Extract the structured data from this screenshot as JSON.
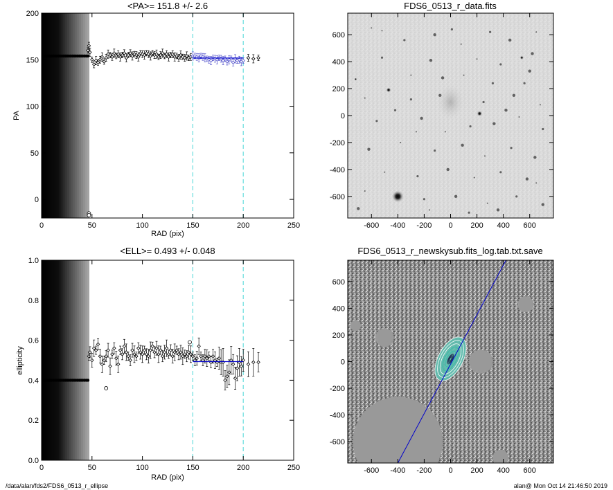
{
  "footer": {
    "path": "/data/alan/fds2/FDS6_0513_r_ellipse",
    "stamp": "alan@  Mon Oct 14 21:46:50 2019"
  },
  "colors": {
    "fit": "#0000cc",
    "fit_points": "#5555cc",
    "cyan": "#66dddd",
    "contour": "#33bbaa"
  },
  "chart_data": [
    {
      "type": "scatter",
      "title": "<PA>= 151.8 +/-   2.6",
      "xlabel": "RAD (pix)",
      "ylabel": "PA",
      "xlim": [
        0,
        250
      ],
      "ylim": [
        -20,
        200
      ],
      "xticks": [
        0,
        50,
        100,
        150,
        200,
        250
      ],
      "yticks": [
        0,
        50,
        100,
        150,
        200
      ],
      "grid": false,
      "inner_region_max_x": 47,
      "inner_marker_y": 154,
      "vlines": [
        150,
        200
      ],
      "mean_line": {
        "x": [
          150,
          200
        ],
        "y": 151.8
      },
      "points": [
        [
          46,
          160
        ],
        [
          47,
          165
        ],
        [
          48,
          158
        ],
        [
          50,
          150
        ],
        [
          52,
          145
        ],
        [
          54,
          149
        ],
        [
          56,
          147
        ],
        [
          58,
          150
        ],
        [
          60,
          153
        ],
        [
          62,
          148
        ],
        [
          64,
          152
        ],
        [
          66,
          156
        ],
        [
          68,
          155
        ],
        [
          70,
          153
        ],
        [
          72,
          157
        ],
        [
          74,
          154
        ],
        [
          76,
          156
        ],
        [
          78,
          153
        ],
        [
          80,
          155
        ],
        [
          82,
          157
        ],
        [
          84,
          152
        ],
        [
          86,
          155
        ],
        [
          88,
          157
        ],
        [
          90,
          154
        ],
        [
          92,
          156
        ],
        [
          94,
          155
        ],
        [
          96,
          153
        ],
        [
          98,
          157
        ],
        [
          100,
          156
        ],
        [
          102,
          155
        ],
        [
          104,
          157
        ],
        [
          106,
          156
        ],
        [
          108,
          154
        ],
        [
          110,
          157
        ],
        [
          112,
          155
        ],
        [
          114,
          156
        ],
        [
          116,
          153
        ],
        [
          118,
          155
        ],
        [
          120,
          157
        ],
        [
          122,
          154
        ],
        [
          124,
          156
        ],
        [
          126,
          153
        ],
        [
          128,
          155
        ],
        [
          130,
          156
        ],
        [
          132,
          153
        ],
        [
          134,
          154
        ],
        [
          136,
          152
        ],
        [
          138,
          155
        ],
        [
          140,
          153
        ],
        [
          142,
          152
        ],
        [
          144,
          154
        ],
        [
          146,
          152
        ],
        [
          148,
          153
        ],
        [
          150,
          154
        ],
        [
          152,
          154
        ],
        [
          154,
          153
        ],
        [
          156,
          152
        ],
        [
          158,
          154
        ],
        [
          160,
          153
        ],
        [
          162,
          152
        ],
        [
          164,
          151
        ],
        [
          166,
          150
        ],
        [
          168,
          149
        ],
        [
          170,
          152
        ],
        [
          172,
          151
        ],
        [
          174,
          150
        ],
        [
          176,
          152
        ],
        [
          178,
          151
        ],
        [
          180,
          149
        ],
        [
          182,
          151
        ],
        [
          184,
          148
        ],
        [
          186,
          150
        ],
        [
          188,
          151
        ],
        [
          190,
          147
        ],
        [
          192,
          151
        ],
        [
          194,
          149
        ],
        [
          196,
          150
        ],
        [
          198,
          148
        ],
        [
          200,
          149
        ],
        [
          205,
          152
        ],
        [
          210,
          151
        ],
        [
          215,
          152
        ]
      ],
      "fit_points_range": [
        150,
        200
      ],
      "outlier_points": [
        [
          47,
          -15
        ],
        [
          47,
          -17
        ]
      ]
    },
    {
      "type": "scatter",
      "title": "<ELL>= 0.493 +/-  0.048",
      "xlabel": "RAD (pix)",
      "ylabel": "ellipticity",
      "xlim": [
        0,
        250
      ],
      "ylim": [
        0.0,
        1.0
      ],
      "xticks": [
        0,
        50,
        100,
        150,
        200,
        250
      ],
      "yticks": [
        0.0,
        0.2,
        0.4,
        0.6,
        0.8,
        1.0
      ],
      "grid": false,
      "inner_region_max_x": 47,
      "inner_marker_y": 0.4,
      "vlines": [
        150,
        200
      ],
      "mean_line": {
        "x": [
          150,
          200
        ],
        "y": 0.493
      },
      "points": [
        [
          47,
          0.52
        ],
        [
          48,
          0.54
        ],
        [
          50,
          0.5
        ],
        [
          52,
          0.56
        ],
        [
          54,
          0.55
        ],
        [
          56,
          0.58
        ],
        [
          58,
          0.52
        ],
        [
          60,
          0.48
        ],
        [
          62,
          0.5
        ],
        [
          64,
          0.52
        ],
        [
          66,
          0.55
        ],
        [
          68,
          0.47
        ],
        [
          70,
          0.53
        ],
        [
          72,
          0.56
        ],
        [
          74,
          0.51
        ],
        [
          76,
          0.48
        ],
        [
          78,
          0.55
        ],
        [
          80,
          0.53
        ],
        [
          82,
          0.57
        ],
        [
          84,
          0.54
        ],
        [
          86,
          0.52
        ],
        [
          88,
          0.5
        ],
        [
          90,
          0.55
        ],
        [
          92,
          0.53
        ],
        [
          94,
          0.52
        ],
        [
          96,
          0.56
        ],
        [
          98,
          0.54
        ],
        [
          100,
          0.53
        ],
        [
          102,
          0.55
        ],
        [
          104,
          0.53
        ],
        [
          106,
          0.52
        ],
        [
          108,
          0.55
        ],
        [
          110,
          0.57
        ],
        [
          112,
          0.54
        ],
        [
          114,
          0.56
        ],
        [
          116,
          0.53
        ],
        [
          118,
          0.55
        ],
        [
          120,
          0.52
        ],
        [
          122,
          0.54
        ],
        [
          124,
          0.56
        ],
        [
          126,
          0.53
        ],
        [
          128,
          0.55
        ],
        [
          130,
          0.52
        ],
        [
          132,
          0.54
        ],
        [
          134,
          0.55
        ],
        [
          136,
          0.53
        ],
        [
          138,
          0.54
        ],
        [
          140,
          0.52
        ],
        [
          142,
          0.53
        ],
        [
          144,
          0.52
        ],
        [
          146,
          0.54
        ],
        [
          148,
          0.53
        ],
        [
          150,
          0.52
        ],
        [
          152,
          0.5
        ],
        [
          154,
          0.51
        ],
        [
          156,
          0.57
        ],
        [
          158,
          0.52
        ],
        [
          160,
          0.5
        ],
        [
          162,
          0.52
        ],
        [
          164,
          0.51
        ],
        [
          166,
          0.52
        ],
        [
          168,
          0.49
        ],
        [
          170,
          0.52
        ],
        [
          172,
          0.5
        ],
        [
          174,
          0.49
        ],
        [
          176,
          0.51
        ],
        [
          178,
          0.49
        ],
        [
          180,
          0.49
        ],
        [
          182,
          0.4
        ],
        [
          184,
          0.42
        ],
        [
          186,
          0.44
        ],
        [
          188,
          0.5
        ],
        [
          190,
          0.48
        ],
        [
          192,
          0.41
        ],
        [
          194,
          0.46
        ],
        [
          196,
          0.49
        ],
        [
          198,
          0.47
        ],
        [
          200,
          0.5
        ],
        [
          205,
          0.48
        ],
        [
          210,
          0.49
        ],
        [
          215,
          0.49
        ]
      ],
      "fit_points_range": [
        150,
        200
      ],
      "outlier_points": [
        [
          64,
          0.36
        ],
        [
          147,
          0.59
        ]
      ]
    },
    {
      "type": "heatmap",
      "title": "FDS6_0513_r_data.fits",
      "xlim": [
        -780,
        780
      ],
      "ylim": [
        -760,
        760
      ],
      "xticks": [
        -600,
        -400,
        -200,
        0,
        200,
        400,
        600
      ],
      "yticks": [
        -600,
        -400,
        -200,
        0,
        200,
        400,
        600
      ],
      "bright_sources": [
        [
          -400,
          -600,
          45
        ],
        [
          -470,
          190,
          18
        ],
        [
          220,
          15,
          20
        ],
        [
          540,
          430,
          14
        ],
        [
          -720,
          270,
          10
        ],
        [
          0,
          100,
          60
        ]
      ],
      "stars": [
        [
          -600,
          650
        ],
        [
          -350,
          560
        ],
        [
          -120,
          600
        ],
        [
          80,
          530
        ],
        [
          300,
          620
        ],
        [
          450,
          560
        ],
        [
          650,
          620
        ],
        [
          -520,
          430
        ],
        [
          -150,
          410
        ],
        [
          200,
          420
        ],
        [
          380,
          380
        ],
        [
          600,
          330
        ],
        [
          -650,
          130
        ],
        [
          -300,
          120
        ],
        [
          -80,
          150
        ],
        [
          100,
          300
        ],
        [
          320,
          240
        ],
        [
          480,
          150
        ],
        [
          680,
          80
        ],
        [
          -560,
          -40
        ],
        [
          -220,
          -20
        ],
        [
          -40,
          -120
        ],
        [
          150,
          -80
        ],
        [
          330,
          -60
        ],
        [
          520,
          -10
        ],
        [
          700,
          -100
        ],
        [
          -620,
          -250
        ],
        [
          -380,
          -200
        ],
        [
          -120,
          -260
        ],
        [
          90,
          -220
        ],
        [
          260,
          -300
        ],
        [
          460,
          -240
        ],
        [
          640,
          -310
        ],
        [
          -500,
          -420
        ],
        [
          -250,
          -450
        ],
        [
          -20,
          -400
        ],
        [
          180,
          -460
        ],
        [
          380,
          -420
        ],
        [
          580,
          -470
        ],
        [
          -650,
          -560
        ],
        [
          -200,
          -620
        ],
        [
          40,
          -600
        ],
        [
          280,
          -650
        ],
        [
          500,
          -600
        ],
        [
          700,
          -660
        ],
        [
          -300,
          300
        ],
        [
          -420,
          40
        ],
        [
          420,
          40
        ],
        [
          650,
          -500
        ],
        [
          10,
          640
        ],
        [
          -700,
          -690
        ],
        [
          -160,
          -700
        ],
        [
          140,
          -720
        ],
        [
          360,
          -700
        ],
        [
          -520,
          630
        ],
        [
          250,
          100
        ],
        [
          -60,
          280
        ],
        [
          -260,
          -120
        ],
        [
          560,
          240
        ],
        [
          620,
          460
        ]
      ]
    },
    {
      "type": "heatmap",
      "title": "FDS6_0513_r_newskysub.fits_log.tab.txt.save",
      "xlim": [
        -780,
        780
      ],
      "ylim": [
        -760,
        760
      ],
      "xticks": [
        -600,
        -400,
        -200,
        0,
        200,
        400,
        600
      ],
      "yticks": [
        -600,
        -400,
        -200,
        0,
        200,
        400,
        600
      ],
      "masks": [
        [
          -400,
          -600,
          340
        ],
        [
          -500,
          180,
          70
        ],
        [
          230,
          0,
          90
        ],
        [
          570,
          430,
          60
        ],
        [
          -720,
          270,
          40
        ],
        [
          380,
          -720,
          60
        ]
      ],
      "fit_line": [
        [
          -400,
          -760
        ],
        [
          420,
          760
        ]
      ],
      "isophotes": [
        [
          0,
          20,
          50,
          120
        ],
        [
          0,
          20,
          80,
          180
        ],
        [
          0,
          20,
          110,
          230
        ],
        [
          0,
          20,
          140,
          280
        ],
        [
          0,
          20,
          170,
          330
        ]
      ]
    }
  ]
}
